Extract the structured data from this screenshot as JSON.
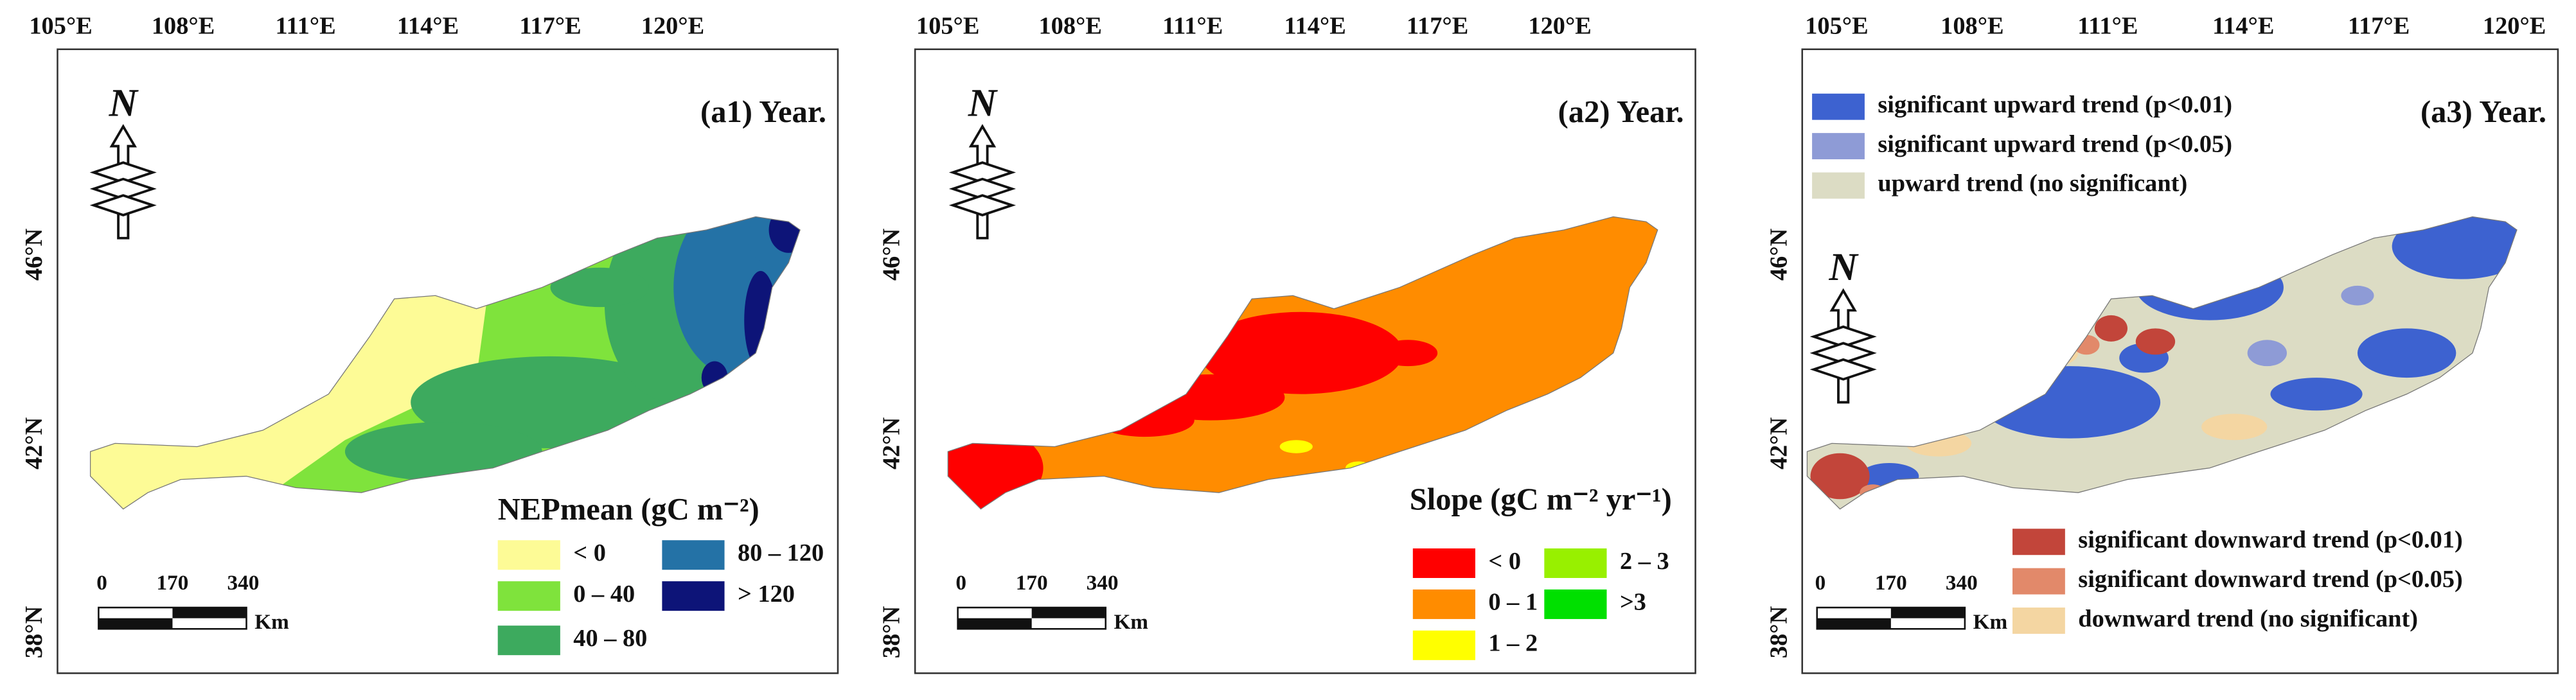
{
  "lon_ticks": [
    "105°E",
    "108°E",
    "111°E",
    "114°E",
    "117°E",
    "120°E"
  ],
  "lat_ticks": [
    "46°N",
    "42°N",
    "38°N"
  ],
  "north": "N",
  "scale_bar": {
    "ticks": [
      "0",
      "170",
      "340"
    ],
    "unit": "Km"
  },
  "panels": [
    {
      "title": "(a1) Year.",
      "legend_title": "NEPmean (gC m⁻²)",
      "legend": [
        {
          "label": "< 0",
          "color": "#fdfb96"
        },
        {
          "label": "0 – 40",
          "color": "#7fe33c"
        },
        {
          "label": "40 – 80",
          "color": "#3daa5e"
        },
        {
          "label": "80 – 120",
          "color": "#2472a6"
        },
        {
          "label": "> 120",
          "color": "#0d1478"
        }
      ]
    },
    {
      "title": "(a2) Year.",
      "legend_title": "Slope (gC m⁻² yr⁻¹)",
      "legend": [
        {
          "label": "< 0",
          "color": "#ff0000"
        },
        {
          "label": "0 – 1",
          "color": "#ff8c00"
        },
        {
          "label": "1 – 2",
          "color": "#ffff00"
        },
        {
          "label": "2 – 3",
          "color": "#98f000"
        },
        {
          "label": ">3",
          "color": "#00e000"
        }
      ]
    },
    {
      "title": "(a3) Year.",
      "legend": [
        {
          "label": "significant upward trend (p<0.01)",
          "color": "#3d62d0"
        },
        {
          "label": "significant upward trend (p<0.05)",
          "color": "#8e9bd6"
        },
        {
          "label": "upward trend (no significant)",
          "color": "#dcdcc4"
        },
        {
          "label": "significant downward trend (p<0.01)",
          "color": "#c2453a"
        },
        {
          "label": "significant downward trend (p<0.05)",
          "color": "#e2896a"
        },
        {
          "label": "downward trend (no significant)",
          "color": "#f4d6a2"
        }
      ]
    }
  ]
}
